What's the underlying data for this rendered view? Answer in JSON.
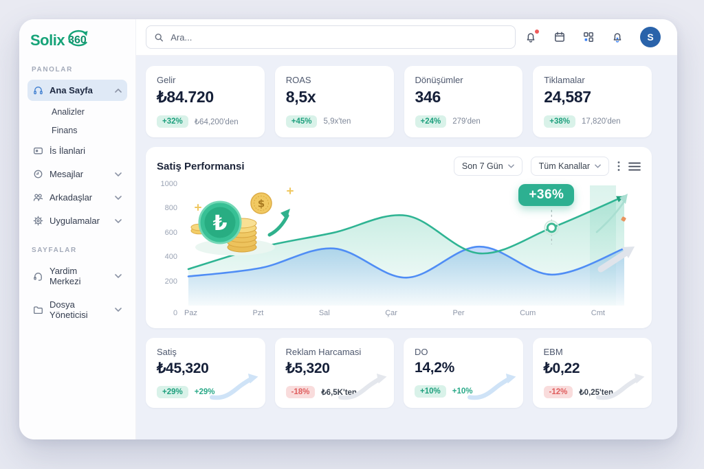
{
  "brand": {
    "name_primary": "Solix",
    "name_suffix": "360"
  },
  "topbar": {
    "search_placeholder": "Ara...",
    "avatar_initial": "S"
  },
  "sidebar": {
    "section_panolar": "PANOLAR",
    "section_sayfalar": "SAYFALAR",
    "ana_sayfa": "Ana Sayfa",
    "analizler": "Analizler",
    "finans": "Finans",
    "is_ilanlari": "İs İlanlari",
    "mesajlar": "Mesajlar",
    "arkadaslar": "Arkadaşlar",
    "uygulamalar": "Uygulamalar",
    "yardim_merkezi": "Yardim Merkezi",
    "dosya_yoneticisi": "Dosya Yöneticisi"
  },
  "kpis": [
    {
      "label": "Gelir",
      "value": "₺84.720",
      "badge": "+32%",
      "compare": "₺64,200'den",
      "trend": "up"
    },
    {
      "label": "ROAS",
      "value": "8,5x",
      "badge": "+45%",
      "compare": "5,9x'ten",
      "trend": "up"
    },
    {
      "label": "Dönüşümler",
      "value": "346",
      "badge": "+24%",
      "compare": "279'den",
      "trend": "up"
    },
    {
      "label": "Tiklamalar",
      "value": "24,587",
      "badge": "+38%",
      "compare": "17,820'den",
      "trend": "up"
    }
  ],
  "chart_header": {
    "range_button": "Son 7 Gün",
    "channel_button": "Tüm Kanallar"
  },
  "chart_data": {
    "type": "area",
    "title": "Satiş Performansi",
    "x": [
      "Paz",
      "Pzt",
      "Sal",
      "Çar",
      "Per",
      "Cum",
      "Cmt"
    ],
    "y_ticks": [
      0,
      200,
      400,
      600,
      800,
      1000
    ],
    "ylim": [
      0,
      1000
    ],
    "grid": false,
    "legend": "none",
    "series": [
      {
        "name": "blue",
        "color": "#4f8df5",
        "values": [
          240,
          310,
          470,
          230,
          485,
          255,
          470
        ]
      },
      {
        "name": "green",
        "color": "#2fb493",
        "values": [
          300,
          480,
          600,
          740,
          430,
          640,
          900
        ]
      }
    ],
    "annotation": {
      "label": "+36%",
      "x_index": 5,
      "series": "green"
    }
  },
  "bottom_cards": [
    {
      "label": "Satiş",
      "value": "₺45,320",
      "badge": "+29%",
      "compare": "+29%",
      "trend": "up"
    },
    {
      "label": "Reklam Harcamasi",
      "value": "₺5,320",
      "badge": "-18%",
      "compare": "₺6,5K'ten",
      "trend": "down"
    },
    {
      "label": "DO",
      "value": "14,2%",
      "badge": "+10%",
      "compare": "+10%",
      "trend": "up"
    },
    {
      "label": "EBM",
      "value": "₺0,22",
      "badge": "-12%",
      "compare": "₺0,25'ten",
      "trend": "down"
    }
  ],
  "colors": {
    "accent_green": "#16a378",
    "badge_green_bg": "#d9f2e9",
    "badge_green_text": "#1fa07e",
    "badge_red_bg": "#f9dcdc",
    "badge_red_text": "#df5e5e",
    "avatar_blue": "#2a63aa",
    "chart_blue": "#4f8df5",
    "chart_green": "#2fb493",
    "annotation_bg": "#2db091",
    "active_item_bg": "#dfe9f6",
    "content_bg": "#edf0f8"
  }
}
